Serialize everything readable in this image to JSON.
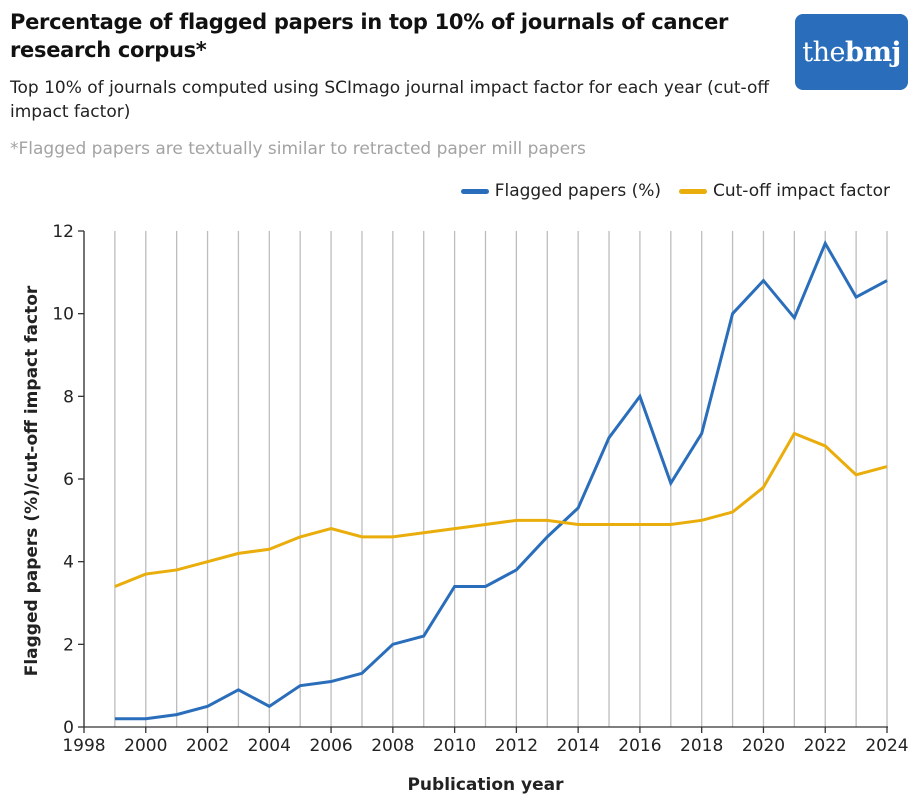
{
  "header": {
    "title": "Percentage of flagged papers in top 10% of journals of cancer research corpus*",
    "subtitle": "Top 10% of journals computed using SCImago journal impact factor for each year (cut-off impact factor)",
    "note": "*Flagged papers are textually similar to retracted paper mill papers"
  },
  "logo": {
    "prefix": "the",
    "brand": "bmj",
    "color": "#2a6ebb"
  },
  "chart_data": {
    "type": "line",
    "title": "Percentage of flagged papers in top 10% of journals of cancer research corpus*",
    "xlabel": "Publication year",
    "ylabel": "Flagged papers (%)/cut-off impact factor",
    "xlim": [
      1998,
      2024
    ],
    "ylim": [
      0,
      12
    ],
    "x_ticks": [
      "1998",
      "2000",
      "2002",
      "2004",
      "2006",
      "2008",
      "2010",
      "2012",
      "2014",
      "2016",
      "2018",
      "2020",
      "2022",
      "2024"
    ],
    "y_ticks": [
      "0",
      "2",
      "4",
      "6",
      "8",
      "10",
      "12"
    ],
    "grid": "vertical",
    "legend_position": "top-right",
    "x": [
      1999,
      2000,
      2001,
      2002,
      2003,
      2004,
      2005,
      2006,
      2007,
      2008,
      2009,
      2010,
      2011,
      2012,
      2013,
      2014,
      2015,
      2016,
      2017,
      2018,
      2019,
      2020,
      2021,
      2022,
      2023,
      2024
    ],
    "series": [
      {
        "name": "Flagged papers (%)",
        "color": "#2a6ebb",
        "values": [
          0.2,
          0.2,
          0.3,
          0.5,
          0.9,
          0.5,
          1.0,
          1.1,
          1.3,
          2.0,
          2.2,
          3.4,
          3.4,
          3.8,
          4.6,
          5.3,
          7.0,
          8.0,
          5.9,
          7.1,
          10.0,
          10.8,
          9.9,
          11.7,
          10.4,
          10.8
        ]
      },
      {
        "name": "Cut-off impact factor",
        "color": "#e9ad0c",
        "values": [
          3.4,
          3.7,
          3.8,
          4.0,
          4.2,
          4.3,
          4.6,
          4.8,
          4.6,
          4.6,
          4.7,
          4.8,
          4.9,
          5.0,
          5.0,
          4.9,
          4.9,
          4.9,
          4.9,
          5.0,
          5.2,
          5.8,
          7.1,
          6.8,
          6.1,
          6.3
        ]
      }
    ]
  }
}
